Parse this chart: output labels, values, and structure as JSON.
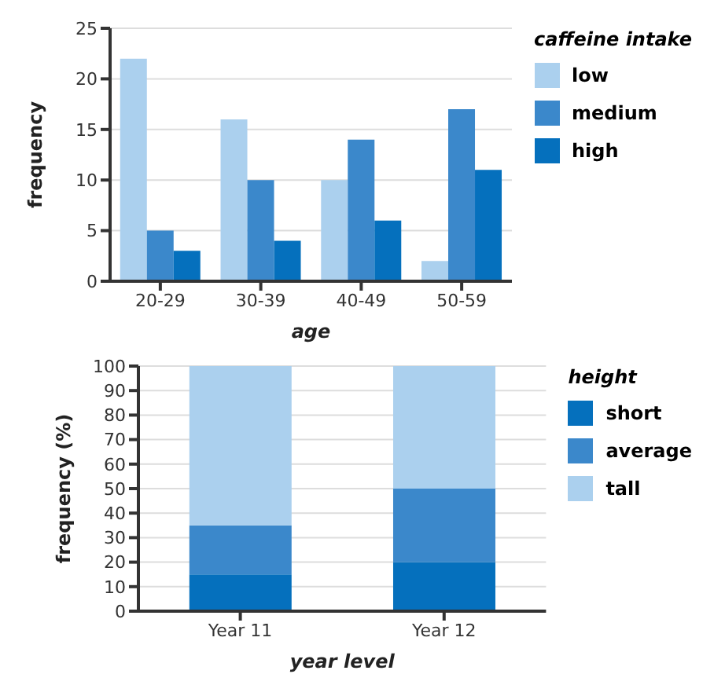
{
  "chart_data": [
    {
      "type": "bar",
      "categories": [
        "20-29",
        "30-39",
        "40-49",
        "50-59"
      ],
      "xlabel": "age",
      "ylabel": "frequency",
      "legend_title": "caffeine intake",
      "legend": "top right",
      "grid": "y",
      "ylim": [
        0,
        25
      ],
      "yticks": [
        0,
        5,
        10,
        15,
        20,
        25
      ],
      "series": [
        {
          "name": "low",
          "color": "#abd0ee",
          "values": [
            22,
            16,
            10,
            2
          ]
        },
        {
          "name": "medium",
          "color": "#3b88cb",
          "values": [
            5,
            10,
            14,
            17
          ]
        },
        {
          "name": "high",
          "color": "#0570bd",
          "values": [
            3,
            4,
            6,
            11
          ]
        }
      ]
    },
    {
      "type": "bar",
      "stacked": true,
      "categories": [
        "Year 11",
        "Year 12"
      ],
      "xlabel": "year level",
      "ylabel": "frequency (%)",
      "legend_title": "height",
      "legend": "top right",
      "grid": "y",
      "ylim": [
        0,
        100
      ],
      "yticks": [
        0,
        10,
        20,
        30,
        40,
        50,
        60,
        70,
        80,
        90,
        100
      ],
      "series": [
        {
          "name": "short",
          "color": "#0570bd",
          "values": [
            15,
            20
          ]
        },
        {
          "name": "average",
          "color": "#3b88cb",
          "values": [
            20,
            30
          ]
        },
        {
          "name": "tall",
          "color": "#abd0ee",
          "values": [
            65,
            50
          ]
        }
      ]
    }
  ]
}
